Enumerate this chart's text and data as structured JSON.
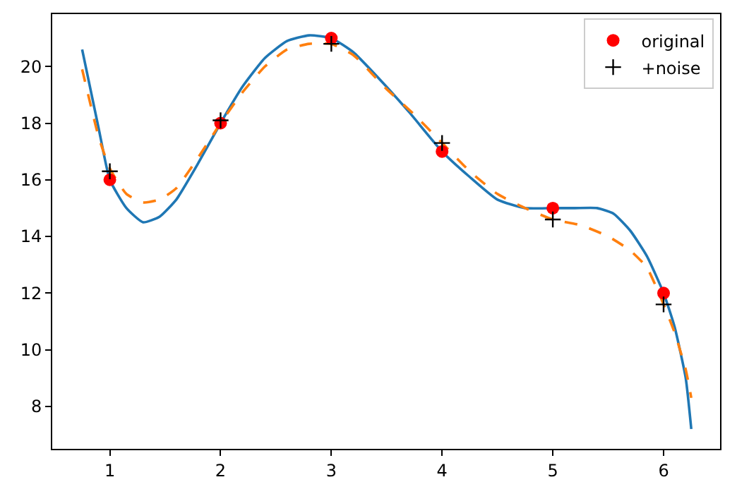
{
  "chart_data": {
    "type": "line",
    "xlim": [
      0.48,
      6.51
    ],
    "ylim": [
      6.5,
      21.85
    ],
    "xticks": [
      1,
      2,
      3,
      4,
      5,
      6
    ],
    "yticks": [
      8,
      10,
      12,
      14,
      16,
      18,
      20
    ],
    "grid": false,
    "legend": "top right",
    "series": [
      {
        "color": "#1f77b4",
        "line_style": "solid",
        "marker": "none",
        "x": [
          0.75,
          0.9,
          1,
          1.15,
          1.3,
          1.45,
          1.6,
          1.8,
          2,
          2.2,
          2.4,
          2.6,
          2.8,
          3,
          3.2,
          3.4,
          3.7,
          4,
          4.25,
          4.5,
          4.75,
          5,
          5.2,
          5.4,
          5.55,
          5.7,
          5.85,
          6,
          6.1,
          6.2,
          6.25
        ],
        "values": [
          20.6,
          17.8,
          16.0,
          15.0,
          14.5,
          14.7,
          15.3,
          16.6,
          18.0,
          19.3,
          20.3,
          20.9,
          21.1,
          21.0,
          20.5,
          19.7,
          18.4,
          17.0,
          16.1,
          15.3,
          15.0,
          15.0,
          15.0,
          15.0,
          14.8,
          14.2,
          13.3,
          12.0,
          10.8,
          9.0,
          7.2
        ]
      },
      {
        "color": "#ff7f0e",
        "line_style": "dashed",
        "marker": "none",
        "x": [
          0.75,
          0.9,
          1,
          1.15,
          1.3,
          1.45,
          1.6,
          1.8,
          2,
          2.2,
          2.4,
          2.6,
          2.8,
          3,
          3.2,
          3.5,
          3.75,
          4,
          4.25,
          4.5,
          4.75,
          5,
          5.25,
          5.5,
          5.7,
          5.85,
          6,
          6.1,
          6.2,
          6.25
        ],
        "values": [
          19.9,
          17.5,
          16.4,
          15.5,
          15.2,
          15.3,
          15.7,
          16.8,
          18.0,
          19.1,
          20.0,
          20.6,
          20.8,
          20.8,
          20.4,
          19.2,
          18.3,
          17.3,
          16.3,
          15.5,
          15.0,
          14.6,
          14.4,
          14.0,
          13.5,
          12.9,
          11.6,
          10.6,
          9.3,
          8.3
        ]
      },
      {
        "type": "scatter",
        "name": "original",
        "color": "#ff0000",
        "marker": "circle",
        "x": [
          1,
          2,
          3,
          4,
          5,
          6
        ],
        "values": [
          16,
          18,
          21,
          17,
          15,
          12
        ]
      },
      {
        "type": "scatter",
        "name": "+noise",
        "color": "#000000",
        "marker": "cross",
        "x": [
          1,
          2,
          3,
          4,
          5,
          6
        ],
        "values": [
          16.3,
          18.1,
          20.8,
          17.3,
          14.6,
          11.6
        ]
      }
    ]
  }
}
